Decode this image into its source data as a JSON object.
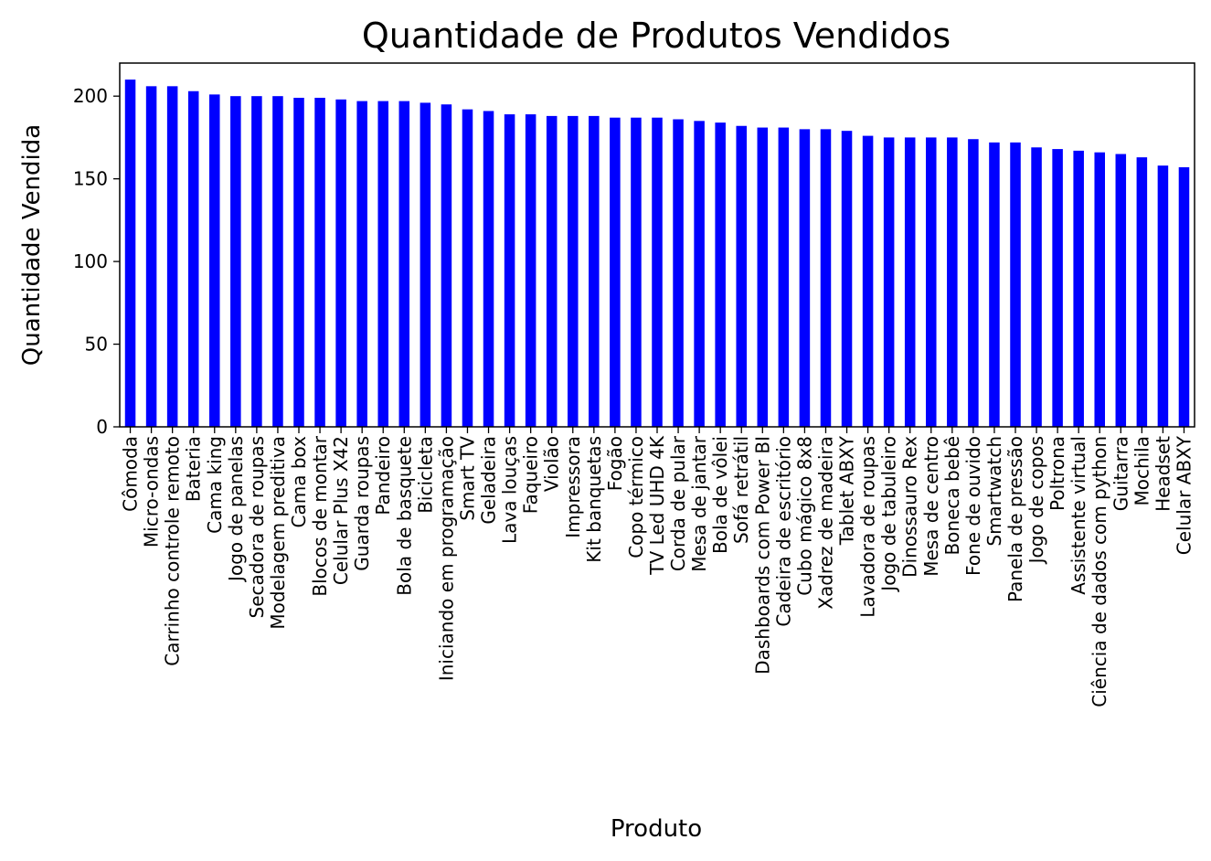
{
  "chart_data": {
    "type": "bar",
    "title": "Quantidade de Produtos Vendidos",
    "xlabel": "Produto",
    "ylabel": "Quantidade Vendida",
    "ylim": [
      0,
      220
    ],
    "yticks": [
      0,
      50,
      100,
      150,
      200
    ],
    "grid": false,
    "bar_color": "#0000ff",
    "categories": [
      "Cômoda",
      "Micro-ondas",
      "Carrinho controle remoto",
      "Bateria",
      "Cama king",
      "Jogo de panelas",
      "Secadora de roupas",
      "Modelagem preditiva",
      "Cama box",
      "Blocos de montar",
      "Celular Plus X42",
      "Guarda roupas",
      "Pandeiro",
      "Bola de basquete",
      "Bicicleta",
      "Iniciando em programação",
      "Smart TV",
      "Geladeira",
      "Lava louças",
      "Faqueiro",
      "Violão",
      "Impressora",
      "Kit banquetas",
      "Fogão",
      "Copo térmico",
      "TV Led UHD 4K",
      "Corda de pular",
      "Mesa de jantar",
      "Bola de vôlei",
      "Sofá retrátil",
      "Dashboards com Power BI",
      "Cadeira de escritório",
      "Cubo mágico 8x8",
      "Xadrez de madeira",
      "Tablet ABXY",
      "Lavadora de roupas",
      "Jogo de tabuleiro",
      "Dinossauro Rex",
      "Mesa de centro",
      "Boneca bebê",
      "Fone de ouvido",
      "Smartwatch",
      "Panela de pressão",
      "Jogo de copos",
      "Poltrona",
      "Assistente virtual",
      "Ciência de dados com python",
      "Guitarra",
      "Mochila",
      "Headset",
      "Celular ABXY"
    ],
    "values": [
      210,
      206,
      206,
      203,
      201,
      200,
      200,
      200,
      199,
      199,
      198,
      197,
      197,
      197,
      196,
      195,
      192,
      191,
      189,
      189,
      188,
      188,
      188,
      187,
      187,
      187,
      186,
      185,
      184,
      182,
      181,
      181,
      180,
      180,
      179,
      176,
      175,
      175,
      175,
      175,
      174,
      172,
      172,
      169,
      168,
      167,
      166,
      165,
      163,
      158,
      157
    ]
  }
}
